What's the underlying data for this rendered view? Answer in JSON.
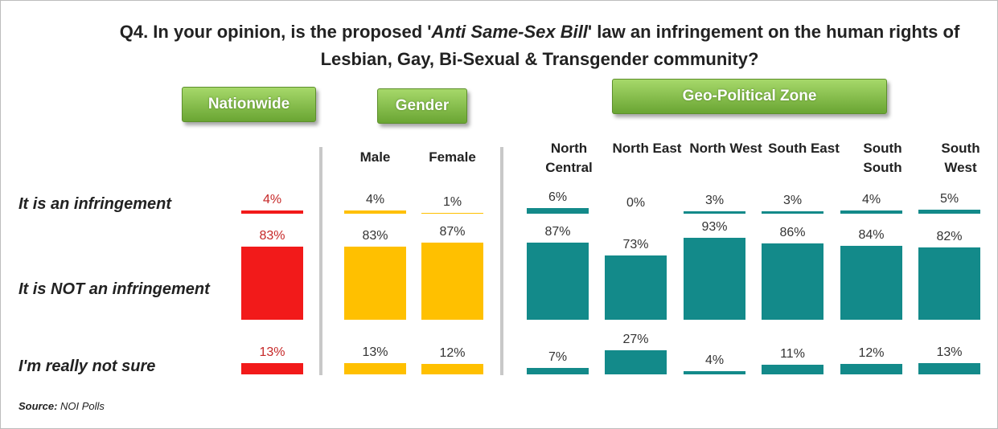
{
  "chart_data": {
    "type": "bar",
    "title": {
      "before": "Q4. In your opinion, is the proposed '",
      "italic": "Anti Same-Sex Bill",
      "after": "' law an infringement on the human rights of Lesbian, Gay, Bi-Sexual & Transgender community?"
    },
    "rows": [
      "It is an infringement",
      "It is NOT an infringement",
      "I'm really not sure"
    ],
    "groups": [
      {
        "name": "Nationwide",
        "color": "#f21a1a",
        "label_color": "#c62828",
        "columns": [
          {
            "values": [
              4,
              83,
              13
            ],
            "value_labels": [
              "4%",
              "83%",
              "13%"
            ]
          }
        ]
      },
      {
        "name": "Gender",
        "color": "#ffc000",
        "label_color": "#333333",
        "columns": [
          {
            "name": "Male",
            "values": [
              4,
              83,
              13
            ],
            "value_labels": [
              "4%",
              "83%",
              "13%"
            ]
          },
          {
            "name": "Female",
            "values": [
              1,
              87,
              12
            ],
            "value_labels": [
              "1%",
              "87%",
              "12%"
            ]
          }
        ]
      },
      {
        "name": "Geo-Political Zone",
        "color": "#138a8a",
        "label_color": "#333333",
        "columns": [
          {
            "name": "North Central",
            "values": [
              6,
              87,
              7
            ],
            "value_labels": [
              "6%",
              "87%",
              "7%"
            ]
          },
          {
            "name": "North East",
            "values": [
              0,
              73,
              27
            ],
            "value_labels": [
              "0%",
              "73%",
              "27%"
            ]
          },
          {
            "name": "North West",
            "values": [
              3,
              93,
              4
            ],
            "value_labels": [
              "3%",
              "93%",
              "4%"
            ]
          },
          {
            "name": "South East",
            "values": [
              3,
              86,
              11
            ],
            "value_labels": [
              "3%",
              "86%",
              "11%"
            ]
          },
          {
            "name": "South South",
            "values": [
              4,
              84,
              12
            ],
            "value_labels": [
              "4%",
              "84%",
              "12%"
            ]
          },
          {
            "name": "South West",
            "values": [
              5,
              82,
              13
            ],
            "value_labels": [
              "5%",
              "82%",
              "13%"
            ]
          }
        ]
      }
    ],
    "source": {
      "label": "Source:",
      "text": "NOI Polls"
    }
  }
}
